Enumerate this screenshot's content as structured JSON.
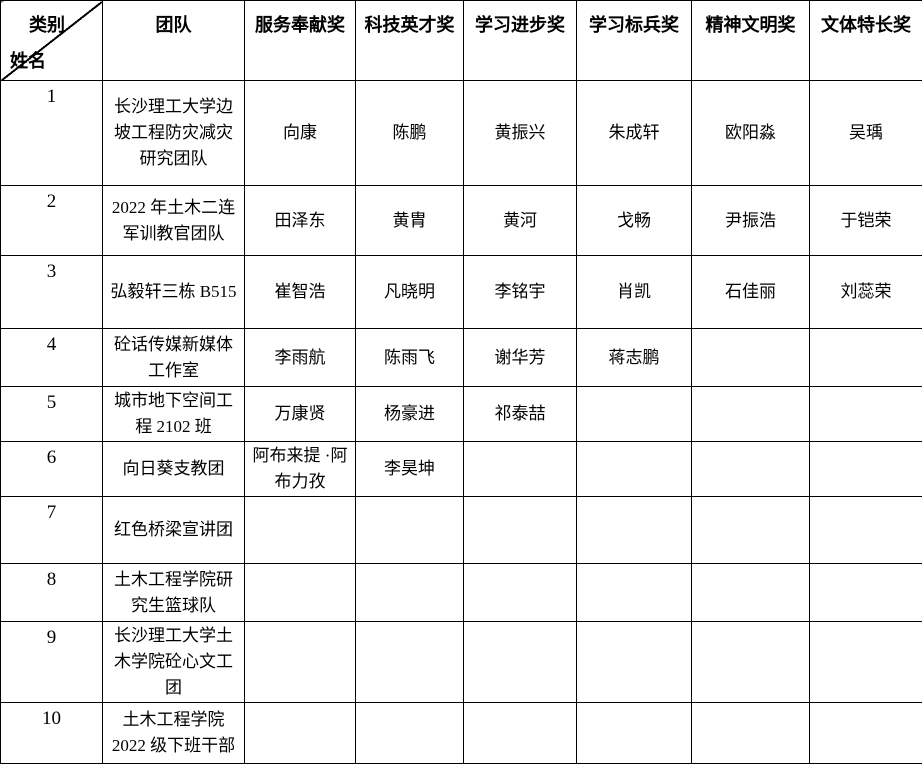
{
  "table": {
    "header": {
      "category_label": "类别",
      "name_label": "姓名",
      "columns": [
        "团队",
        "服务奉献奖",
        "科技英才奖",
        "学习进步奖",
        "学习标兵奖",
        "精神文明奖",
        "文体特长奖"
      ]
    },
    "rows": [
      {
        "num": "1",
        "team": "长沙理工大学边坡工程防灾减灾研究团队",
        "awards": [
          "向康",
          "陈鹏",
          "黄振兴",
          "朱成轩",
          "欧阳淼",
          "吴瑀"
        ]
      },
      {
        "num": "2",
        "team": "2022 年土木二连军训教官团队",
        "awards": [
          "田泽东",
          "黄胄",
          "黄河",
          "戈畅",
          "尹振浩",
          "于铠荣"
        ]
      },
      {
        "num": "3",
        "team": "弘毅轩三栋 B515",
        "awards": [
          "崔智浩",
          "凡晓明",
          "李铭宇",
          "肖凯",
          "石佳丽",
          "刘蕊荣"
        ]
      },
      {
        "num": "4",
        "team": "砼话传媒新媒体工作室",
        "awards": [
          "李雨航",
          "陈雨飞",
          "谢华芳",
          "蒋志鹏",
          "",
          ""
        ]
      },
      {
        "num": "5",
        "team": "城市地下空间工程 2102 班",
        "awards": [
          "万康贤",
          "杨豪进",
          "祁泰喆",
          "",
          "",
          ""
        ]
      },
      {
        "num": "6",
        "team": "向日葵支教团",
        "awards": [
          "阿布来提 ·阿布力孜",
          "李昊坤",
          "",
          "",
          "",
          ""
        ]
      },
      {
        "num": "7",
        "team": "红色桥梁宣讲团",
        "awards": [
          "",
          "",
          "",
          "",
          "",
          ""
        ]
      },
      {
        "num": "8",
        "team": "土木工程学院研究生篮球队",
        "awards": [
          "",
          "",
          "",
          "",
          "",
          ""
        ]
      },
      {
        "num": "9",
        "team": "长沙理工大学土木学院砼心文工团",
        "awards": [
          "",
          "",
          "",
          "",
          "",
          ""
        ]
      },
      {
        "num": "10",
        "team": "土木工程学院 2022 级下班干部",
        "awards": [
          "",
          "",
          "",
          "",
          "",
          ""
        ]
      }
    ]
  }
}
